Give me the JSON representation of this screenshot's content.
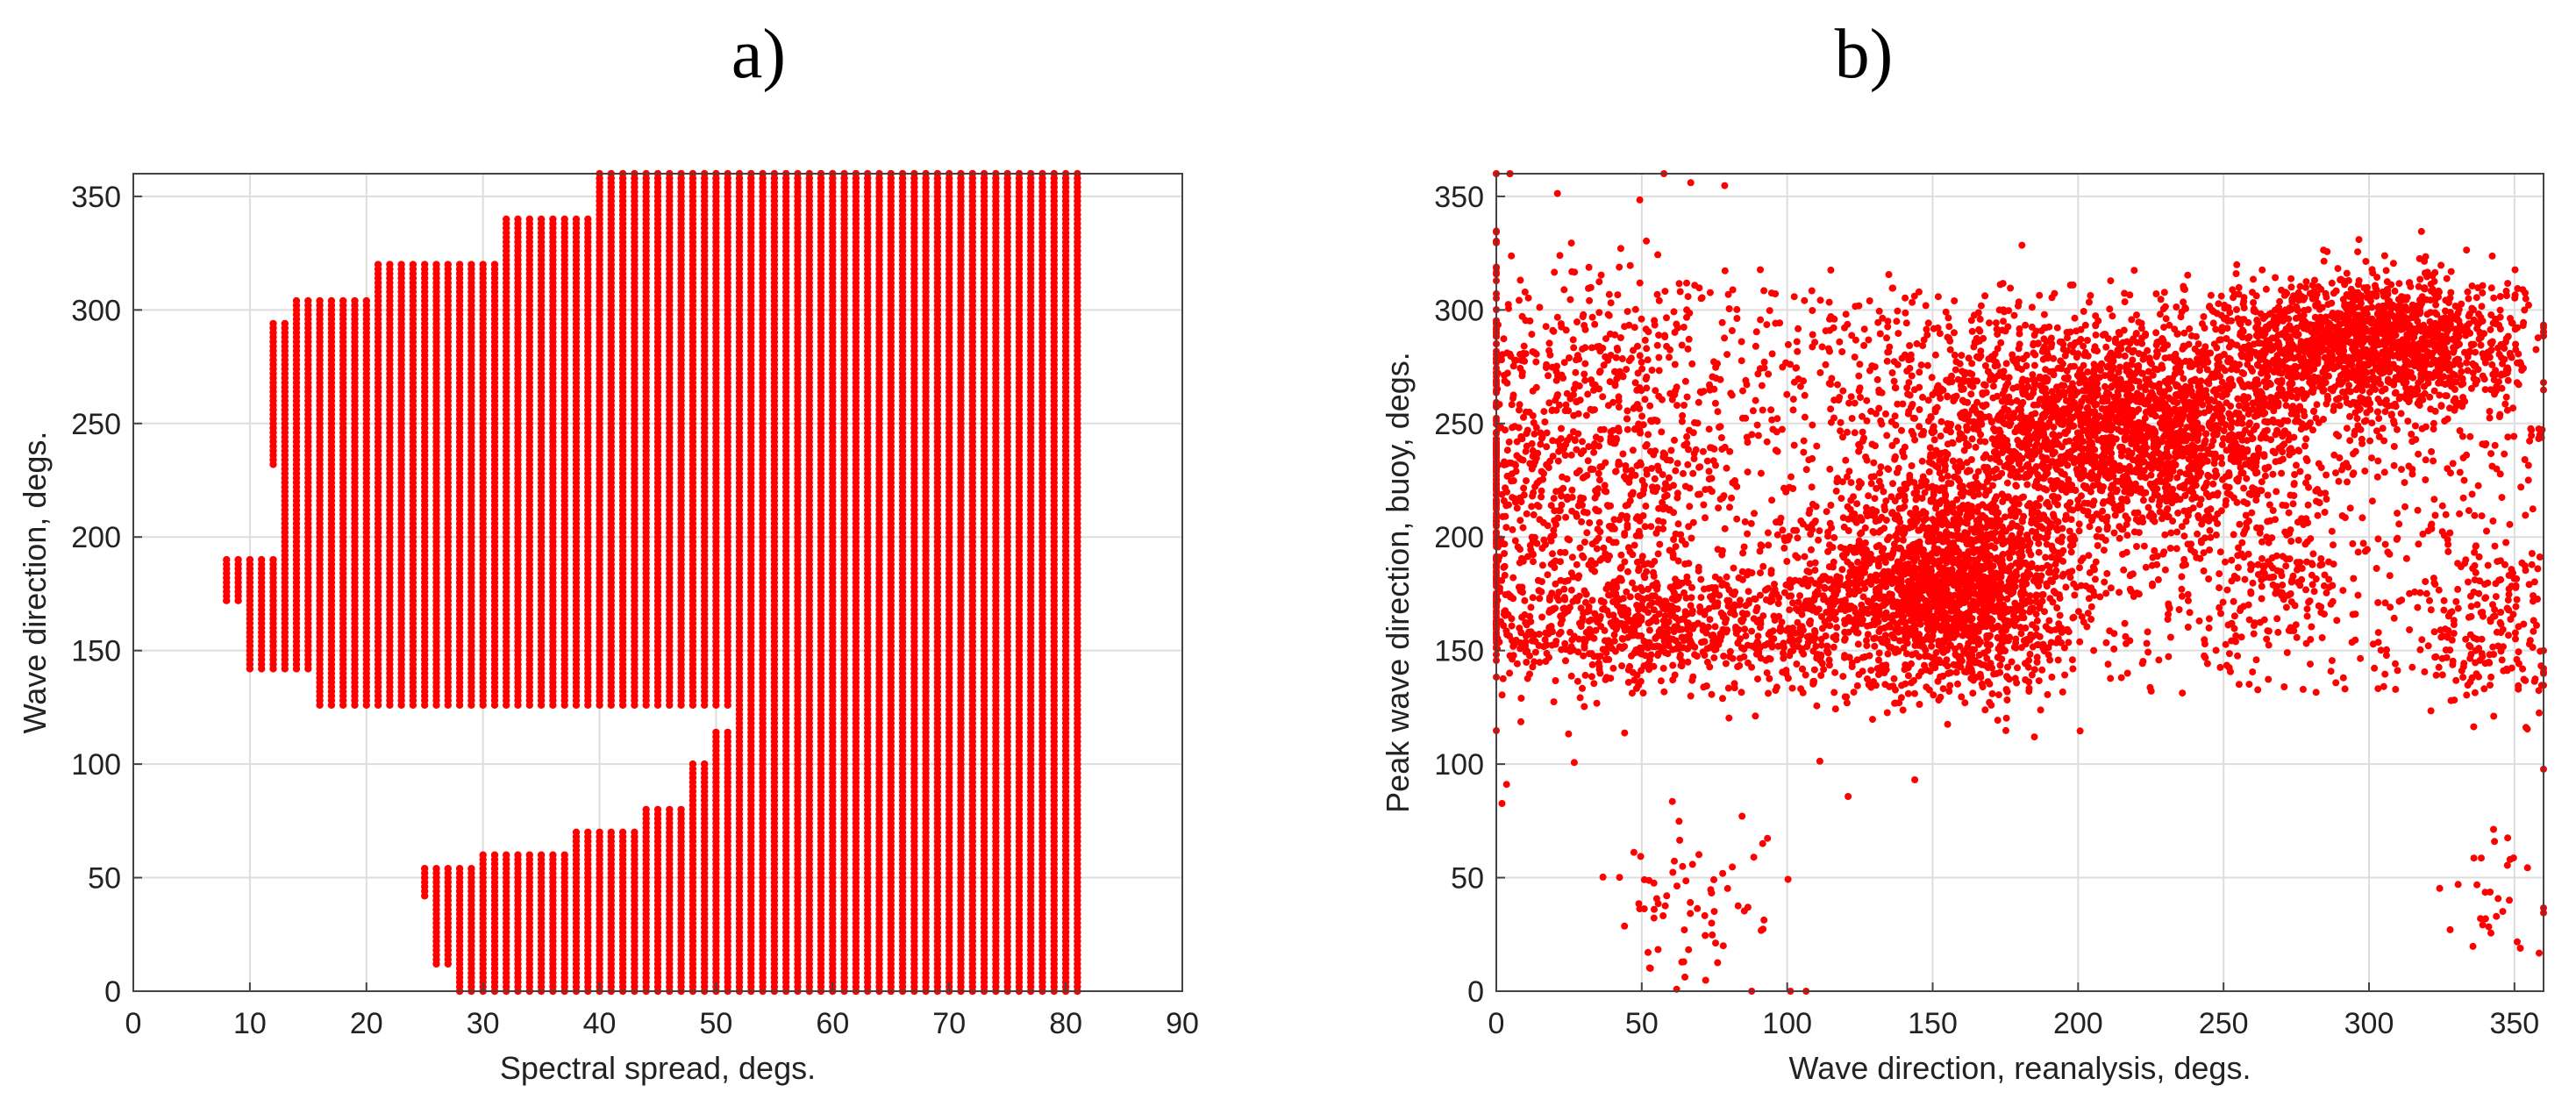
{
  "panels": [
    {
      "label": "a)"
    },
    {
      "label": "b)"
    }
  ],
  "chart_data": [
    {
      "type": "scatter",
      "title": "",
      "xlabel": "Spectral spread, degs.",
      "ylabel": "Wave direction, degs.",
      "xlim": [
        0,
        90
      ],
      "ylim": [
        0,
        360
      ],
      "xticks": [
        0,
        10,
        20,
        30,
        40,
        50,
        60,
        70,
        80,
        90
      ],
      "yticks": [
        0,
        50,
        100,
        150,
        200,
        250,
        300,
        350
      ],
      "grid": true,
      "marker_color": "#ff0000",
      "note_visible": "Dense gridded points: spread ~8-81 deg, direction 0-360 deg; white gap 60-125 deg for spread below ~45",
      "series": [
        {
          "envelope": [
            {
              "dir_min": 0,
              "dir_max": 10,
              "spread_min": 28
            },
            {
              "dir_min": 10,
              "dir_max": 40,
              "spread_min": 26
            },
            {
              "dir_min": 40,
              "dir_max": 55,
              "spread_min": 25
            },
            {
              "dir_min": 55,
              "dir_max": 60,
              "spread_min": 30
            },
            {
              "dir_min": 60,
              "dir_max": 70,
              "spread_min": 38
            },
            {
              "dir_min": 70,
              "dir_max": 80,
              "spread_min": 44
            },
            {
              "dir_min": 80,
              "dir_max": 100,
              "spread_min": 48
            },
            {
              "dir_min": 100,
              "dir_max": 115,
              "spread_min": 50
            },
            {
              "dir_min": 115,
              "dir_max": 125,
              "spread_min": 52
            },
            {
              "dir_min": 125,
              "dir_max": 140,
              "spread_min": 16
            },
            {
              "dir_min": 140,
              "dir_max": 150,
              "spread_min": 10
            },
            {
              "dir_min": 150,
              "dir_max": 170,
              "spread_min": 10
            },
            {
              "dir_min": 170,
              "dir_max": 190,
              "spread_min": 8
            },
            {
              "dir_min": 190,
              "dir_max": 230,
              "spread_min": 13
            },
            {
              "dir_min": 230,
              "dir_max": 295,
              "spread_min": 12
            },
            {
              "dir_min": 295,
              "dir_max": 305,
              "spread_min": 14
            },
            {
              "dir_min": 305,
              "dir_max": 320,
              "spread_min": 21
            },
            {
              "dir_min": 320,
              "dir_max": 340,
              "spread_min": 32
            },
            {
              "dir_min": 340,
              "dir_max": 360,
              "spread_min": 40
            }
          ],
          "spread_max": 81
        }
      ]
    },
    {
      "type": "scatter",
      "title": "",
      "xlabel": "Wave direction, reanalysis, degs.",
      "ylabel": "Peak wave direction, buoy, degs.",
      "xlim": [
        0,
        360
      ],
      "ylim": [
        0,
        360
      ],
      "xticks": [
        0,
        50,
        100,
        150,
        200,
        250,
        300,
        350
      ],
      "yticks": [
        0,
        50,
        100,
        150,
        200,
        250,
        300,
        350
      ],
      "grid": true,
      "marker_color": "#ff0000",
      "series": [
        {
          "clusters": [
            {
              "x": 155,
              "y": 178,
              "sx": 22,
              "sy": 22,
              "n": 1800
            },
            {
              "x": 225,
              "y": 245,
              "sx": 30,
              "sy": 22,
              "n": 1600
            },
            {
              "x": 300,
              "y": 285,
              "sx": 25,
              "sy": 15,
              "n": 1500
            },
            {
              "x": 175,
              "y": 255,
              "sx": 30,
              "sy": 25,
              "n": 700
            },
            {
              "x": 60,
              "y": 160,
              "sx": 35,
              "sy": 12,
              "n": 600
            },
            {
              "x": 30,
              "y": 230,
              "sx": 30,
              "sy": 45,
              "n": 900
            },
            {
              "x": 340,
              "y": 160,
              "sx": 12,
              "sy": 20,
              "n": 150
            },
            {
              "x": 270,
              "y": 180,
              "sx": 15,
              "sy": 15,
              "n": 120
            },
            {
              "x": 70,
              "y": 40,
              "sx": 15,
              "sy": 20,
              "n": 70
            },
            {
              "x": 345,
              "y": 40,
              "sx": 10,
              "sy": 15,
              "n": 30
            }
          ],
          "background_n": 1400,
          "background_y_range": [
            130,
            310
          ]
        }
      ]
    }
  ]
}
